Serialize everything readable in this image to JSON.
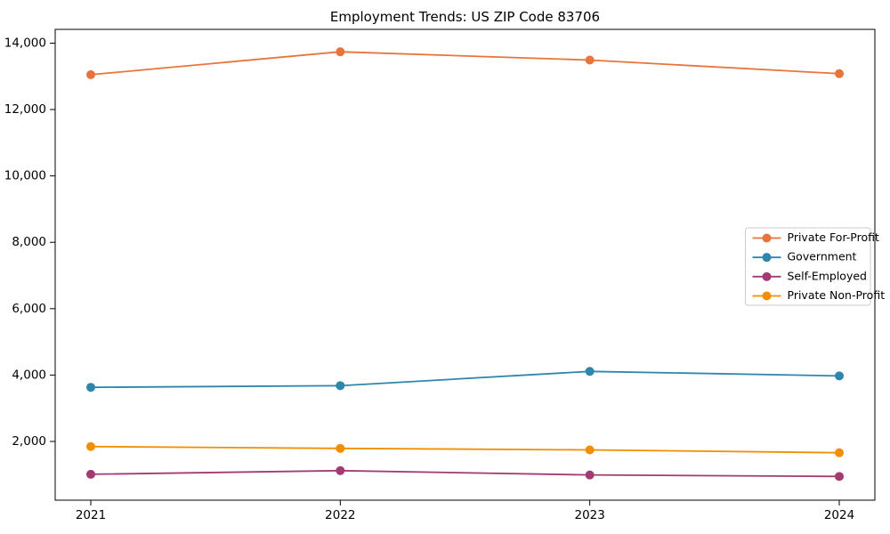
{
  "chart_data": {
    "type": "line",
    "title": "Employment Trends: US ZIP Code 83706",
    "xlabel": "",
    "ylabel": "",
    "x": [
      2021,
      2022,
      2023,
      2024
    ],
    "xtick_labels": [
      "2021",
      "2022",
      "2023",
      "2024"
    ],
    "yticks": [
      2000,
      4000,
      6000,
      8000,
      10000,
      12000,
      14000
    ],
    "ytick_labels": [
      "2,000",
      "4,000",
      "6,000",
      "8,000",
      "10,000",
      "12,000",
      "14,000"
    ],
    "ylim": [
      230,
      14415
    ],
    "grid": false,
    "legend_position": "center-right",
    "marker": "circle",
    "axis_color": "#000000",
    "plot_background": "#ffffff",
    "legend_border_color": "#cccccc",
    "series": [
      {
        "name": "Private For-Profit",
        "color": "#E8743B",
        "values": [
          13050,
          13740,
          13490,
          13080
        ]
      },
      {
        "name": "Government",
        "color": "#2E86AB",
        "values": [
          3630,
          3680,
          4110,
          3975
        ]
      },
      {
        "name": "Self-Employed",
        "color": "#A23B72",
        "values": [
          1010,
          1120,
          990,
          945
        ]
      },
      {
        "name": "Private Non-Profit",
        "color": "#F18F01",
        "values": [
          1845,
          1790,
          1745,
          1660
        ]
      }
    ]
  }
}
